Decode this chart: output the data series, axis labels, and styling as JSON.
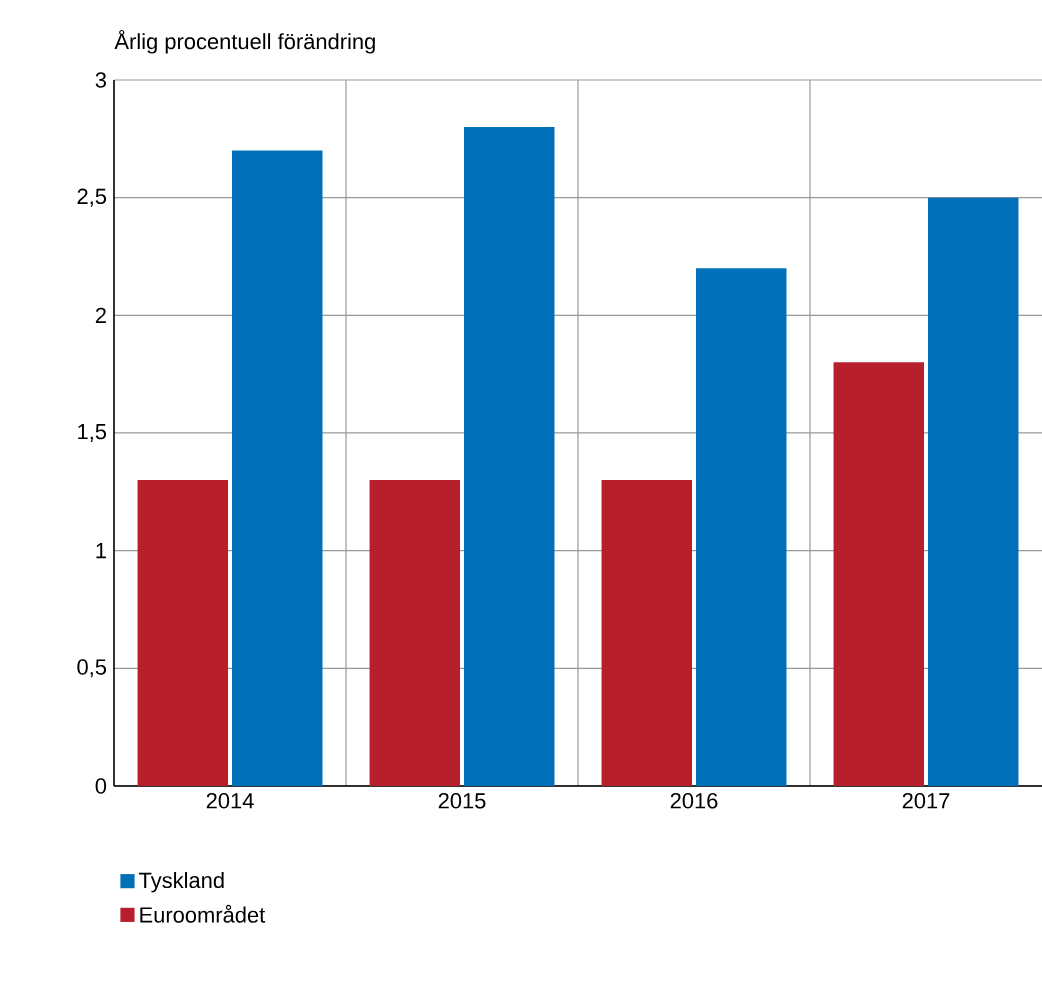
{
  "chart_data": {
    "type": "bar",
    "subtitle": "Årlig procentuell förändring",
    "categories": [
      "2014",
      "2015",
      "2016",
      "2017"
    ],
    "series": [
      {
        "name": "Euroområdet",
        "color": "#b81f2d",
        "values": [
          1.3,
          1.3,
          1.3,
          1.8
        ]
      },
      {
        "name": "Tyskland",
        "color": "#0070b8",
        "values": [
          2.7,
          2.8,
          2.2,
          2.5
        ]
      }
    ],
    "ylim": [
      0,
      3
    ],
    "yticks": [
      0,
      {
        "value": 0.5,
        "label": "0,5"
      },
      1,
      {
        "value": 1.5,
        "label": "1,5"
      },
      2,
      {
        "value": 2.5,
        "label": "2,5"
      },
      3
    ],
    "grid": true,
    "legend": "bottom left"
  }
}
